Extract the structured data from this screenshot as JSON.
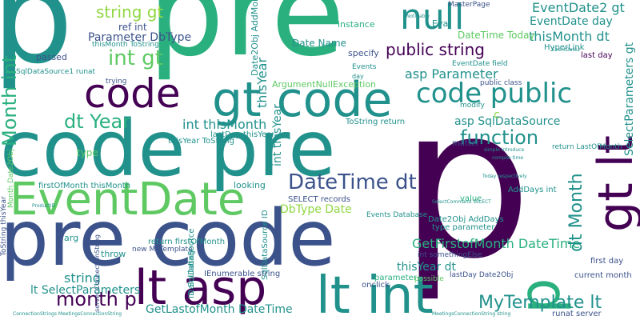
{
  "colors": {
    "background": "#ffffff",
    "palette": [
      "#440154",
      "#3b528b",
      "#21918c",
      "#2ab07f",
      "#5ec962",
      "#90d743",
      "#fde725"
    ]
  },
  "words": [
    "p",
    "pre",
    "p",
    "code pre",
    "pre code",
    "EventDate",
    "gt code",
    "lt asp",
    "lt int",
    "code",
    "gt lt",
    "p",
    "code public",
    "null",
    "string gt",
    "int gt",
    "Month int",
    "Parameter DbType",
    "dt Year",
    "DateTime dt",
    "public string",
    "asp Parameter",
    "function",
    "MyTemplate lt",
    "month p",
    "GetFirstofMonth DateTime",
    "int thisMonth",
    "thisMonth dt",
    "EventDate2 gt",
    "EventDate day",
    "DateTime Today",
    "Date Name",
    "asp SqlDataSource",
    "GetLastofMonth DateTime",
    "string",
    "dt Month",
    "SelectParameters gt",
    "DbType Date",
    "thisYear dt",
    "lt SelectParameters",
    "ref int",
    "thisYear",
    "instance",
    "ArgumentNullException",
    "Date2Obj AddMonths",
    "int thisYear",
    "passed",
    "Eval",
    "specify",
    "Events",
    "HyperLink",
    "last day",
    "MasterPage",
    "EventDate field",
    "public class",
    "ToString return",
    "lastDay thisYear",
    "thisYear ToString",
    "firstOfMonth thisMonth",
    "looking",
    "SELECT records",
    "Events Database",
    "type",
    "arg",
    "throw",
    "return firstOfMonth",
    "calculating",
    "IEnumerable string",
    "new MyTemplate",
    "value",
    "matter",
    "return LastOfMonth",
    "AddDays int",
    "Date2Obj AddDays",
    "type parameter",
    "first day",
    "current month",
    "int somethingElse",
    "parameter",
    "onclick",
    "possible",
    "runat server",
    "lastDay Date2Obj",
    "SqlDataSource ID",
    "ID SqlDataSource",
    "Month Date2Obj",
    "modify",
    "ToString thisYear",
    "trying",
    "server ConnectionString",
    "thisMonth ToString",
    "SqlDataSource1 runat",
    "day",
    "c",
    "ConnectionStrings MeetingsConnectionString",
    "MeetingsConnectionString string",
    "Today respectively",
    "SelectCommand SELECT",
    "simple introduce",
    "compile time",
    "Notifiable",
    "ProductID",
    "EventDate2"
  ]
}
